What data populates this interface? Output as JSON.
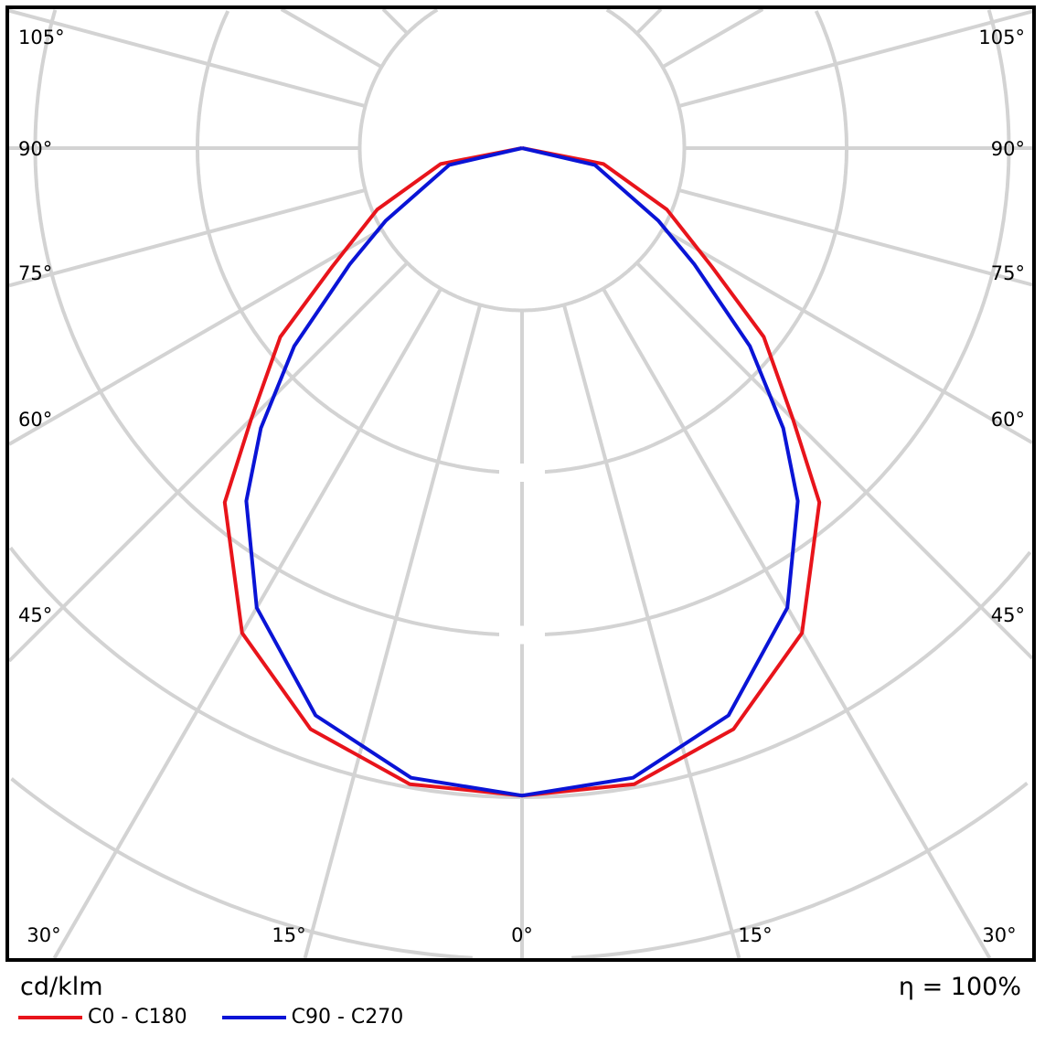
{
  "chart_data": {
    "type": "polar-line",
    "unit_label": "cd/klm",
    "efficiency_label": "η = 100%",
    "angle_labels": {
      "left": [
        "105°",
        "90°",
        "75°",
        "60°",
        "45°"
      ],
      "right": [
        "105°",
        "90°",
        "75°",
        "60°",
        "45°"
      ],
      "bottom": [
        "30°",
        "15°",
        "0°",
        "15°",
        "30°"
      ]
    },
    "angle_grid_step_deg": 15,
    "radial_rings": 5,
    "radial_tick_labels_visible": false,
    "grid": true,
    "legend_placement": "bottom-left",
    "series": [
      {
        "name": "C0 - C180",
        "color": "#e8141b",
        "angles_deg": [
          0,
          10,
          20,
          30,
          40,
          45,
          52,
          58,
          67,
          79,
          90
        ],
        "intensity_rings": [
          3.99,
          3.98,
          3.81,
          3.45,
          2.85,
          2.36,
          1.89,
          1.38,
          0.97,
          0.51,
          0
        ]
      },
      {
        "name": "C90 - C270",
        "color": "#0a14d6",
        "angles_deg": [
          0,
          10,
          20,
          30,
          38,
          43,
          49,
          56,
          62,
          77,
          90
        ],
        "intensity_rings": [
          3.99,
          3.94,
          3.72,
          3.27,
          2.76,
          2.36,
          1.86,
          1.28,
          0.95,
          0.46,
          0
        ]
      }
    ]
  }
}
